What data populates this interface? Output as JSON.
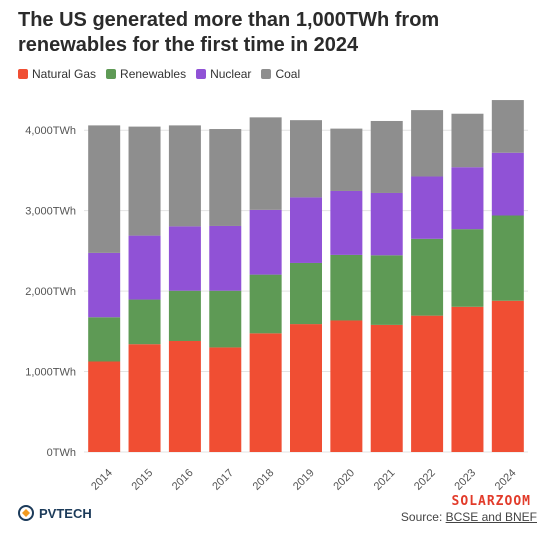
{
  "header": {
    "title": "The US generated more than 1,000TWh from renewables for the first time in 2024"
  },
  "footer": {
    "logo_text": "PVTECH",
    "watermark": "SOLARZOOM",
    "source_prefix": "Source: ",
    "source_names": "BCSE and BNEF"
  },
  "chart_data": {
    "type": "bar",
    "stacked": true,
    "title": "The US generated more than 1,000TWh from renewables for the first time in 2024",
    "categories": [
      "2014",
      "2015",
      "2016",
      "2017",
      "2018",
      "2019",
      "2020",
      "2021",
      "2022",
      "2023",
      "2024"
    ],
    "series": [
      {
        "name": "Natural Gas",
        "color": "#f04e33",
        "values": [
          1125,
          1340,
          1380,
          1300,
          1475,
          1590,
          1635,
          1580,
          1695,
          1805,
          1880
        ]
      },
      {
        "name": "Renewables",
        "color": "#5e9a55",
        "values": [
          550,
          555,
          625,
          705,
          730,
          760,
          815,
          865,
          955,
          965,
          1060
        ]
      },
      {
        "name": "Nuclear",
        "color": "#9052d6",
        "values": [
          800,
          795,
          800,
          805,
          805,
          815,
          795,
          775,
          775,
          770,
          780
        ]
      },
      {
        "name": "Coal",
        "color": "#8e8e8e",
        "values": [
          1585,
          1355,
          1255,
          1205,
          1150,
          960,
          775,
          895,
          825,
          665,
          655
        ]
      }
    ],
    "yticks": [
      "0TWh",
      "1,000TWh",
      "2,000TWh",
      "3,000TWh",
      "4,000TWh"
    ],
    "ylim": [
      0,
      4500
    ],
    "xlabel": "",
    "ylabel": "",
    "grid": true,
    "legend_position": "top-left"
  }
}
